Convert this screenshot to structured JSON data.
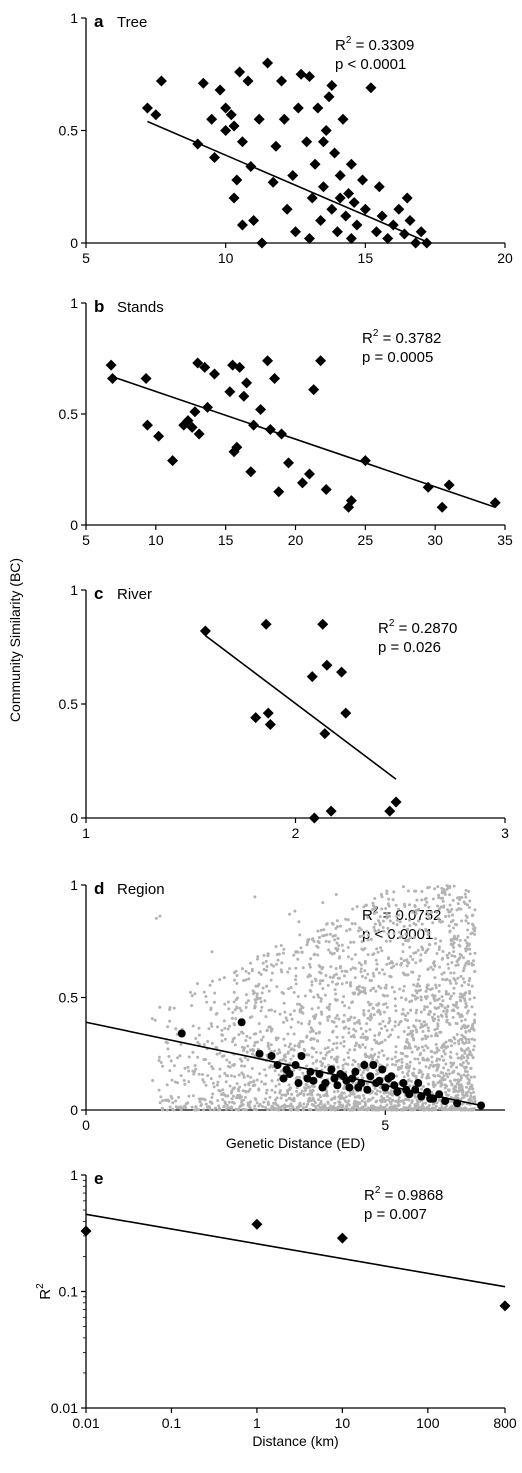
{
  "figure": {
    "shared_ylabel": "Community Similarity (BC)"
  },
  "chart_data": [
    {
      "type": "scatter",
      "letter": "a",
      "title": "Tree",
      "stats": {
        "r2": "R",
        "r2_value": " = 0.3309",
        "p": "p < 0.0001"
      },
      "xlim": [
        5,
        20
      ],
      "ylim": [
        0,
        1
      ],
      "xticks": [
        "5",
        "10",
        "15",
        "20"
      ],
      "yticks": [
        "0",
        "0.5",
        "1"
      ],
      "fit_line": {
        "x": [
          7.2,
          17.3
        ],
        "y": [
          0.54,
          0.0
        ]
      },
      "series": [
        {
          "marker": "diamond",
          "color": "#000000",
          "points": [
            [
              7.2,
              0.6
            ],
            [
              7.5,
              0.57
            ],
            [
              7.7,
              0.72
            ],
            [
              9.0,
              0.44
            ],
            [
              9.2,
              0.71
            ],
            [
              9.5,
              0.55
            ],
            [
              9.6,
              0.38
            ],
            [
              9.8,
              0.68
            ],
            [
              10.0,
              0.6
            ],
            [
              10.0,
              0.5
            ],
            [
              10.2,
              0.57
            ],
            [
              10.3,
              0.52
            ],
            [
              10.4,
              0.28
            ],
            [
              10.5,
              0.76
            ],
            [
              10.6,
              0.45
            ],
            [
              10.8,
              0.72
            ],
            [
              10.3,
              0.2
            ],
            [
              10.6,
              0.08
            ],
            [
              10.9,
              0.34
            ],
            [
              11.2,
              0.55
            ],
            [
              11.5,
              0.8
            ],
            [
              11.7,
              0.27
            ],
            [
              11.8,
              0.43
            ],
            [
              12.0,
              0.72
            ],
            [
              12.1,
              0.55
            ],
            [
              12.2,
              0.15
            ],
            [
              12.4,
              0.3
            ],
            [
              12.5,
              0.05
            ],
            [
              12.7,
              0.75
            ],
            [
              12.9,
              0.45
            ],
            [
              13.0,
              0.74
            ],
            [
              13.1,
              0.2
            ],
            [
              13.2,
              0.35
            ],
            [
              13.3,
              0.6
            ],
            [
              13.4,
              0.1
            ],
            [
              13.5,
              0.25
            ],
            [
              13.6,
              0.5
            ],
            [
              13.7,
              0.65
            ],
            [
              13.8,
              0.15
            ],
            [
              13.9,
              0.4
            ],
            [
              14.0,
              0.05
            ],
            [
              14.1,
              0.3
            ],
            [
              14.2,
              0.55
            ],
            [
              14.3,
              0.12
            ],
            [
              14.4,
              0.22
            ],
            [
              14.5,
              0.35
            ],
            [
              14.6,
              0.18
            ],
            [
              14.7,
              0.08
            ],
            [
              14.9,
              0.28
            ],
            [
              15.0,
              0.15
            ],
            [
              15.2,
              0.69
            ],
            [
              15.4,
              0.05
            ],
            [
              15.6,
              0.12
            ],
            [
              15.8,
              0.02
            ],
            [
              16.0,
              0.08
            ],
            [
              16.2,
              0.15
            ],
            [
              16.4,
              0.04
            ],
            [
              16.6,
              0.1
            ],
            [
              16.8,
              0.0
            ],
            [
              17.0,
              0.05
            ],
            [
              17.2,
              0.0
            ],
            [
              11.0,
              0.1
            ],
            [
              11.3,
              0.0
            ],
            [
              12.6,
              0.6
            ],
            [
              13.5,
              0.45
            ],
            [
              13.8,
              0.7
            ],
            [
              14.1,
              0.2
            ],
            [
              13.0,
              0.02
            ],
            [
              14.5,
              0.02
            ],
            [
              15.5,
              0.25
            ],
            [
              16.5,
              0.2
            ]
          ]
        }
      ]
    },
    {
      "type": "scatter",
      "letter": "b",
      "title": "Stands",
      "stats": {
        "r2": "R",
        "r2_value": " = 0.3782",
        "p": "p = 0.0005"
      },
      "xlim": [
        5,
        35
      ],
      "ylim": [
        0,
        1
      ],
      "xticks": [
        "5",
        "10",
        "15",
        "20",
        "25",
        "30",
        "35"
      ],
      "yticks": [
        "0",
        "0.5",
        "1"
      ],
      "fit_line": {
        "x": [
          6.8,
          34.3
        ],
        "y": [
          0.67,
          0.08
        ]
      },
      "series": [
        {
          "marker": "diamond",
          "color": "#000000",
          "points": [
            [
              6.8,
              0.72
            ],
            [
              6.9,
              0.66
            ],
            [
              9.3,
              0.66
            ],
            [
              9.4,
              0.45
            ],
            [
              10.2,
              0.4
            ],
            [
              11.2,
              0.29
            ],
            [
              12.0,
              0.45
            ],
            [
              12.3,
              0.47
            ],
            [
              12.6,
              0.44
            ],
            [
              12.8,
              0.51
            ],
            [
              13.0,
              0.73
            ],
            [
              13.1,
              0.41
            ],
            [
              13.5,
              0.71
            ],
            [
              13.7,
              0.53
            ],
            [
              14.2,
              0.68
            ],
            [
              15.3,
              0.6
            ],
            [
              15.5,
              0.72
            ],
            [
              15.6,
              0.33
            ],
            [
              15.8,
              0.35
            ],
            [
              16.0,
              0.71
            ],
            [
              16.3,
              0.58
            ],
            [
              16.5,
              0.64
            ],
            [
              16.8,
              0.24
            ],
            [
              17.0,
              0.45
            ],
            [
              17.5,
              0.52
            ],
            [
              18.0,
              0.74
            ],
            [
              18.2,
              0.43
            ],
            [
              18.5,
              0.66
            ],
            [
              18.8,
              0.15
            ],
            [
              19.0,
              0.41
            ],
            [
              19.5,
              0.28
            ],
            [
              20.5,
              0.19
            ],
            [
              21.0,
              0.23
            ],
            [
              21.3,
              0.61
            ],
            [
              21.8,
              0.74
            ],
            [
              22.2,
              0.16
            ],
            [
              23.8,
              0.08
            ],
            [
              24.0,
              0.11
            ],
            [
              25.0,
              0.29
            ],
            [
              29.5,
              0.17
            ],
            [
              30.5,
              0.08
            ],
            [
              31.0,
              0.18
            ],
            [
              34.3,
              0.1
            ]
          ]
        }
      ]
    },
    {
      "type": "scatter",
      "letter": "c",
      "title": "River",
      "stats": {
        "r2": "R",
        "r2_value": " = 0.2870",
        "p": "p = 0.026"
      },
      "xlim": [
        1,
        3
      ],
      "ylim": [
        0,
        1
      ],
      "xticks": [
        "1",
        "2",
        "3"
      ],
      "yticks": [
        "0",
        "0.5",
        "1"
      ],
      "fit_line": {
        "x": [
          1.57,
          2.48
        ],
        "y": [
          0.8,
          0.17
        ]
      },
      "series": [
        {
          "marker": "diamond",
          "color": "#000000",
          "points": [
            [
              1.57,
              0.82
            ],
            [
              1.81,
              0.44
            ],
            [
              1.86,
              0.85
            ],
            [
              1.87,
              0.46
            ],
            [
              1.88,
              0.41
            ],
            [
              2.08,
              0.62
            ],
            [
              2.09,
              0.0
            ],
            [
              2.13,
              0.85
            ],
            [
              2.14,
              0.37
            ],
            [
              2.15,
              0.67
            ],
            [
              2.17,
              0.03
            ],
            [
              2.22,
              0.64
            ],
            [
              2.24,
              0.46
            ],
            [
              2.45,
              0.03
            ],
            [
              2.48,
              0.07
            ]
          ]
        }
      ]
    },
    {
      "type": "scatter",
      "letter": "d",
      "title": "Region",
      "stats": {
        "r2": "R",
        "r2_value": " = 0.0752",
        "p": "p < 0.0001"
      },
      "xlim": [
        0,
        7
      ],
      "ylim": [
        0,
        1
      ],
      "xticks": [
        "0",
        "5"
      ],
      "yticks": [
        "0",
        "0.5",
        "1"
      ],
      "xlabel": "Genetic Distance (ED)",
      "fit_line": {
        "x": [
          0.0,
          6.6
        ],
        "y": [
          0.39,
          0.02
        ]
      },
      "background_cloud": {
        "color": "#b3b3b3",
        "x_range": [
          1.0,
          6.5
        ],
        "y_max": 1.0,
        "count": 2600
      },
      "series": [
        {
          "marker": "circle",
          "color": "#000000",
          "points": [
            [
              1.6,
              0.34
            ],
            [
              2.6,
              0.39
            ],
            [
              2.9,
              0.25
            ],
            [
              3.1,
              0.24
            ],
            [
              3.2,
              0.2
            ],
            [
              3.3,
              0.14
            ],
            [
              3.4,
              0.16
            ],
            [
              3.5,
              0.2
            ],
            [
              3.6,
              0.24
            ],
            [
              3.7,
              0.14
            ],
            [
              3.8,
              0.13
            ],
            [
              3.9,
              0.16
            ],
            [
              4.0,
              0.12
            ],
            [
              4.1,
              0.18
            ],
            [
              4.2,
              0.11
            ],
            [
              4.3,
              0.15
            ],
            [
              4.4,
              0.1
            ],
            [
              4.5,
              0.17
            ],
            [
              4.6,
              0.12
            ],
            [
              4.7,
              0.09
            ],
            [
              4.8,
              0.2
            ],
            [
              4.9,
              0.13
            ],
            [
              5.0,
              0.1
            ],
            [
              5.1,
              0.15
            ],
            [
              5.2,
              0.08
            ],
            [
              5.3,
              0.12
            ],
            [
              5.4,
              0.07
            ],
            [
              5.5,
              0.09
            ],
            [
              5.6,
              0.06
            ],
            [
              5.7,
              0.08
            ],
            [
              5.8,
              0.05
            ],
            [
              5.9,
              0.07
            ],
            [
              6.0,
              0.04
            ],
            [
              6.2,
              0.03
            ],
            [
              6.6,
              0.02
            ],
            [
              3.35,
              0.18
            ],
            [
              3.55,
              0.12
            ],
            [
              3.75,
              0.17
            ],
            [
              3.95,
              0.1
            ],
            [
              4.15,
              0.14
            ],
            [
              4.35,
              0.13
            ],
            [
              4.55,
              0.1
            ],
            [
              4.75,
              0.15
            ],
            [
              4.95,
              0.18
            ],
            [
              5.15,
              0.11
            ],
            [
              5.35,
              0.09
            ],
            [
              5.55,
              0.12
            ],
            [
              5.75,
              0.05
            ],
            [
              5.05,
              0.14
            ],
            [
              4.85,
              0.12
            ],
            [
              4.65,
              0.2
            ],
            [
              4.45,
              0.14
            ],
            [
              4.25,
              0.16
            ]
          ]
        }
      ]
    },
    {
      "type": "scatter",
      "letter": "e",
      "title": "",
      "stats": {
        "r2": "R",
        "r2_value": " = 0.9868",
        "p": "p = 0.007"
      },
      "xscale": "log",
      "yscale": "log",
      "xlim": [
        0.01,
        800
      ],
      "ylim": [
        0.01,
        1
      ],
      "xticks": [
        "0.01",
        "0.1",
        "1",
        "10",
        "100",
        "800"
      ],
      "yticks": [
        "0.01",
        "0.1",
        "1"
      ],
      "xlabel": "Distance (km)",
      "ylabel": "R",
      "fit_line": {
        "x": [
          0.01,
          800
        ],
        "y": [
          0.46,
          0.11
        ]
      },
      "series": [
        {
          "marker": "diamond",
          "color": "#000000",
          "points": [
            [
              0.01,
              0.3309
            ],
            [
              1,
              0.3782
            ],
            [
              10,
              0.287
            ],
            [
              800,
              0.0752
            ]
          ]
        }
      ]
    }
  ]
}
